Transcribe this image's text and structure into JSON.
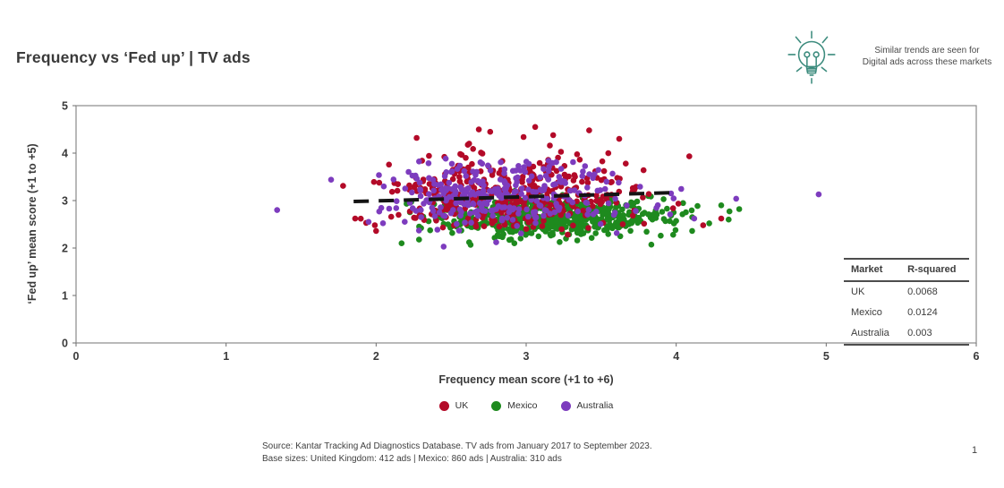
{
  "page": {
    "page_number": "1"
  },
  "header": {
    "title": "Frequency vs ‘Fed up’ | TV ads"
  },
  "insight": {
    "icon": "lightbulb-icon",
    "icon_color": "#3d8c7e",
    "line1": "Similar trends are seen for",
    "line2": "Digital ads across these markets"
  },
  "chart_data": {
    "type": "scatter",
    "title": "Frequency vs ‘Fed up’ | TV ads",
    "xlabel": "Frequency mean score (+1 to +6)",
    "ylabel": "‘Fed up’ mean score (+1 to +5)",
    "xlim": [
      0,
      6
    ],
    "ylim": [
      0,
      5
    ],
    "xticks": [
      0,
      1,
      2,
      3,
      4,
      5,
      6
    ],
    "yticks": [
      0,
      1,
      2,
      3,
      4,
      5
    ],
    "grid": false,
    "legend_position": "bottom-center",
    "marker_radius_px": 3.3,
    "draw_order": [
      "Mexico",
      "UK",
      "Australia"
    ],
    "series": [
      {
        "name": "UK",
        "color": "#b30a28",
        "base_size_ads": 412,
        "n_points": 412,
        "cluster": {
          "x_mean": 2.88,
          "x_sd": 0.4,
          "x_min": 1.78,
          "x_max": 4.25,
          "y_mean": 3.12,
          "y_sd": 0.42,
          "y_min": 2.28,
          "y_max": 4.58
        },
        "outliers": [
          [
            1.78,
            3.31
          ],
          [
            1.86,
            2.62
          ],
          [
            2.0,
            2.36
          ],
          [
            2.27,
            4.32
          ],
          [
            2.76,
            4.45
          ],
          [
            3.06,
            4.55
          ],
          [
            3.42,
            4.48
          ],
          [
            3.18,
            4.38
          ],
          [
            2.62,
            4.2
          ],
          [
            3.62,
            4.3
          ],
          [
            4.18,
            2.48
          ],
          [
            4.3,
            2.62
          ]
        ]
      },
      {
        "name": "Mexico",
        "color": "#1e8a1e",
        "base_size_ads": 860,
        "n_points": 600,
        "cluster": {
          "x_mean": 3.12,
          "x_sd": 0.4,
          "x_min": 2.15,
          "x_max": 4.45,
          "y_mean": 2.66,
          "y_sd": 0.21,
          "y_min": 2.05,
          "y_max": 3.3
        },
        "outliers": [
          [
            4.35,
            2.6
          ],
          [
            4.42,
            2.82
          ],
          [
            4.3,
            2.9
          ],
          [
            4.22,
            2.52
          ],
          [
            3.98,
            2.28
          ],
          [
            2.17,
            2.1
          ],
          [
            2.62,
            2.12
          ],
          [
            2.3,
            2.42
          ]
        ]
      },
      {
        "name": "Australia",
        "color": "#7d3cbe",
        "base_size_ads": 310,
        "n_points": 310,
        "cluster": {
          "x_mean": 2.82,
          "x_sd": 0.45,
          "x_min": 1.95,
          "x_max": 4.1,
          "y_mean": 3.12,
          "y_sd": 0.33,
          "y_min": 2.2,
          "y_max": 3.95
        },
        "outliers": [
          [
            1.34,
            2.8
          ],
          [
            1.7,
            3.44
          ],
          [
            4.95,
            3.13
          ],
          [
            4.4,
            3.04
          ],
          [
            2.45,
            2.03
          ],
          [
            2.8,
            2.12
          ],
          [
            4.12,
            2.62
          ],
          [
            1.95,
            2.55
          ]
        ]
      }
    ],
    "trendline": {
      "x1": 1.85,
      "y1": 2.98,
      "x2": 4.02,
      "y2": 3.17,
      "style": "dashed",
      "color": "#141414"
    },
    "r_squared_table": {
      "headers": [
        "Market",
        "R-squared"
      ],
      "rows": [
        {
          "market": "UK",
          "r_squared": "0.0068"
        },
        {
          "market": "Mexico",
          "r_squared": "0.0124"
        },
        {
          "market": "Australia",
          "r_squared": "0.003"
        }
      ]
    }
  },
  "footer": {
    "source_line1": "Source: Kantar Tracking Ad Diagnostics Database. TV ads from January 2017 to September 2023.",
    "source_line2": "Base sizes: United Kingdom: 412 ads | Mexico: 860 ads | Australia: 310 ads"
  }
}
